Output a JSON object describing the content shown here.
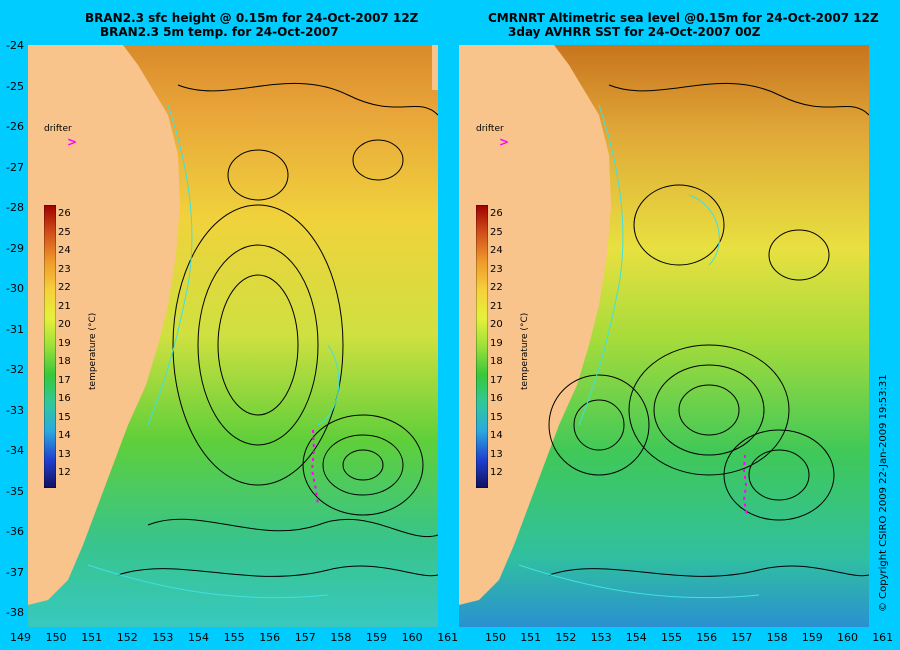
{
  "left_panel": {
    "title_line1": "BRAN2.3 sfc height @ 0.15m for 24-Oct-2007 12Z",
    "title_line2": "BRAN2.3 5m temp. for 24-Oct-2007",
    "drifter_label": "drifter",
    "drifter_symbol": ">"
  },
  "right_panel": {
    "title_line1": "CMRNRT Altimetric sea level  @0.15m  for 24-Oct-2007 12Z",
    "title_line2": "3day AVHRR SST for 24-Oct-2007 00Z",
    "drifter_label": "drifter",
    "drifter_symbol": ">"
  },
  "y_ticks": [
    "-24",
    "-25",
    "-26",
    "-27",
    "-28",
    "-29",
    "-30",
    "-31",
    "-32",
    "-33",
    "-34",
    "-35",
    "-36",
    "-37",
    "-38"
  ],
  "x_ticks_left": [
    "149",
    "150",
    "151",
    "152",
    "153",
    "154",
    "155",
    "156",
    "157",
    "158",
    "159",
    "160",
    "161"
  ],
  "x_ticks_right": [
    "150",
    "151",
    "152",
    "153",
    "154",
    "155",
    "156",
    "157",
    "158",
    "159",
    "160",
    "161"
  ],
  "colorbar": {
    "title": "temperature (°C)",
    "labels": [
      "26",
      "25",
      "24",
      "23",
      "22",
      "21",
      "20",
      "19",
      "18",
      "17",
      "16",
      "15",
      "14",
      "13",
      "12"
    ]
  },
  "copyright": "© Copyright CSIRO 2009     22-Jan-2009 19:53:31",
  "colors": {
    "background": "#00ccff",
    "land": "#f9c48c",
    "drifter": "#ff00ff"
  }
}
